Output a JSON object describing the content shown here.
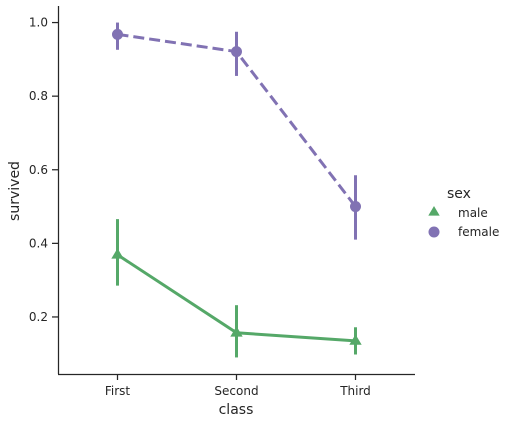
{
  "chart_data": {
    "type": "line",
    "xlabel": "class",
    "ylabel": "survived",
    "categories": [
      "First",
      "Second",
      "Third"
    ],
    "ylim": [
      0.045,
      1.045
    ],
    "yticks": [
      0.2,
      0.4,
      0.6,
      0.8,
      1.0
    ],
    "ytick_labels": [
      "0.2",
      "0.4",
      "0.6",
      "0.8",
      "1.0"
    ],
    "grid": false,
    "legend": {
      "title": "sex",
      "position": "right"
    },
    "series": [
      {
        "name": "male",
        "marker": "triangle",
        "line_style": "solid",
        "color": "#55a868",
        "values": [
          0.369,
          0.157,
          0.135
        ],
        "ci_low": [
          0.285,
          0.09,
          0.098
        ],
        "ci_high": [
          0.466,
          0.232,
          0.172
        ]
      },
      {
        "name": "female",
        "marker": "circle",
        "line_style": "dashed",
        "color": "#8172b3",
        "values": [
          0.968,
          0.921,
          0.5
        ],
        "ci_low": [
          0.926,
          0.855,
          0.41
        ],
        "ci_high": [
          1.0,
          0.975,
          0.585
        ]
      }
    ]
  }
}
